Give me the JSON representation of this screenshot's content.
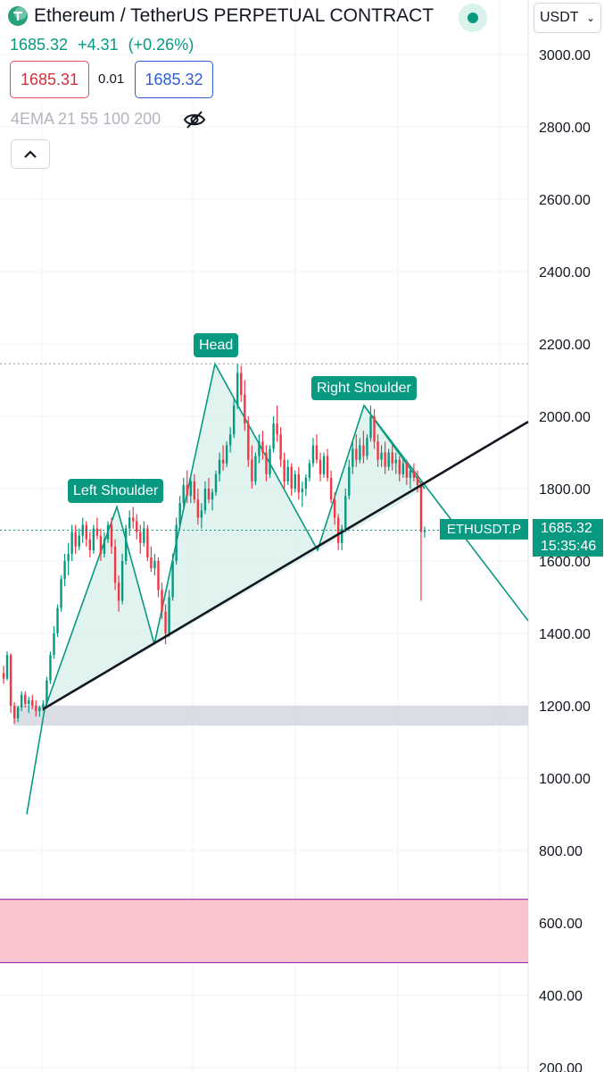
{
  "header": {
    "title": "Ethereum / TetherUS PERPETUAL CONTRACT",
    "currency": "USDT",
    "last_price": "1685.32",
    "change": "+4.31",
    "change_pct": "(+0.26%)"
  },
  "order": {
    "bid": "1685.31",
    "spread": "0.01",
    "ask": "1685.32"
  },
  "indicator": {
    "label": "4EMA 21 55 100 200"
  },
  "price_tag": {
    "symbol": "ETHUSDT.P",
    "price": "1685.32",
    "countdown": "15:35:46"
  },
  "annotations": {
    "left_shoulder": "Left Shoulder",
    "head": "Head",
    "right_shoulder": "Right Shoulder"
  },
  "colors": {
    "accent": "#089981",
    "bearish": "#f23645",
    "bid_border": "#e04d55",
    "ask_border": "#2f5fd0",
    "pattern_fill": "#d6efe8",
    "support_zone": "#d1d4dc",
    "demand_zone": "#f7c2c8",
    "demand_border": "#9c27b0"
  },
  "icons": [
    "tetherus-logo-icon",
    "live-status-icon",
    "chevron-down-icon",
    "hide-eye-icon",
    "chevron-up-icon"
  ],
  "chart_data": {
    "type": "candlestick",
    "symbol": "ETHUSDT.P",
    "y_axis": {
      "ticks": [
        "3000.00",
        "2800.00",
        "2600.00",
        "2400.00",
        "2200.00",
        "2000.00",
        "1800.00",
        "1600.00",
        "1400.00",
        "1200.00",
        "1000.00",
        "800.00",
        "600.00",
        "400.00",
        "200.00"
      ],
      "range": [
        200,
        3000
      ]
    },
    "last_price": 1685.32,
    "pattern": "head-and-shoulders",
    "pattern_points": [
      {
        "name": "start",
        "price": 1190
      },
      {
        "name": "left_shoulder",
        "price": 1750
      },
      {
        "name": "trough_1",
        "price": 1370
      },
      {
        "name": "head",
        "price": 2145
      },
      {
        "name": "trough_2",
        "price": 1630
      },
      {
        "name": "right_shoulder",
        "price": 2030
      },
      {
        "name": "neckline_break",
        "price": 1800
      }
    ],
    "neckline": {
      "from_price": 1190,
      "to_price": 1985
    },
    "head_level": 2145,
    "current_price_level": 1685.32,
    "support_zone": [
      1145,
      1200
    ],
    "demand_zone": [
      490,
      665
    ],
    "grid": true,
    "candles": [
      {
        "o": 1290,
        "h": 1310,
        "l": 1260,
        "c": 1275
      },
      {
        "o": 1275,
        "h": 1350,
        "l": 1270,
        "c": 1340
      },
      {
        "o": 1340,
        "h": 1345,
        "l": 1180,
        "c": 1200
      },
      {
        "o": 1200,
        "h": 1210,
        "l": 1150,
        "c": 1165
      },
      {
        "o": 1165,
        "h": 1200,
        "l": 1155,
        "c": 1195
      },
      {
        "o": 1195,
        "h": 1240,
        "l": 1185,
        "c": 1230
      },
      {
        "o": 1230,
        "h": 1240,
        "l": 1195,
        "c": 1205
      },
      {
        "o": 1205,
        "h": 1225,
        "l": 1180,
        "c": 1215
      },
      {
        "o": 1215,
        "h": 1230,
        "l": 1190,
        "c": 1200
      },
      {
        "o": 1200,
        "h": 1215,
        "l": 1170,
        "c": 1185
      },
      {
        "o": 1185,
        "h": 1200,
        "l": 1170,
        "c": 1195
      },
      {
        "o": 1195,
        "h": 1215,
        "l": 1185,
        "c": 1205
      },
      {
        "o": 1205,
        "h": 1280,
        "l": 1200,
        "c": 1270
      },
      {
        "o": 1270,
        "h": 1350,
        "l": 1260,
        "c": 1340
      },
      {
        "o": 1340,
        "h": 1420,
        "l": 1330,
        "c": 1400
      },
      {
        "o": 1400,
        "h": 1480,
        "l": 1390,
        "c": 1470
      },
      {
        "o": 1470,
        "h": 1560,
        "l": 1460,
        "c": 1550
      },
      {
        "o": 1550,
        "h": 1620,
        "l": 1530,
        "c": 1600
      },
      {
        "o": 1600,
        "h": 1650,
        "l": 1560,
        "c": 1620
      },
      {
        "o": 1620,
        "h": 1700,
        "l": 1600,
        "c": 1680
      },
      {
        "o": 1680,
        "h": 1700,
        "l": 1620,
        "c": 1640
      },
      {
        "o": 1640,
        "h": 1690,
        "l": 1630,
        "c": 1670
      },
      {
        "o": 1670,
        "h": 1720,
        "l": 1650,
        "c": 1700
      },
      {
        "o": 1700,
        "h": 1710,
        "l": 1640,
        "c": 1660
      },
      {
        "o": 1660,
        "h": 1680,
        "l": 1610,
        "c": 1630
      },
      {
        "o": 1630,
        "h": 1700,
        "l": 1620,
        "c": 1690
      },
      {
        "o": 1690,
        "h": 1720,
        "l": 1660,
        "c": 1670
      },
      {
        "o": 1670,
        "h": 1690,
        "l": 1600,
        "c": 1620
      },
      {
        "o": 1620,
        "h": 1680,
        "l": 1610,
        "c": 1660
      },
      {
        "o": 1660,
        "h": 1710,
        "l": 1650,
        "c": 1700
      },
      {
        "o": 1700,
        "h": 1720,
        "l": 1620,
        "c": 1640
      },
      {
        "o": 1640,
        "h": 1660,
        "l": 1520,
        "c": 1540
      },
      {
        "o": 1540,
        "h": 1560,
        "l": 1460,
        "c": 1490
      },
      {
        "o": 1490,
        "h": 1620,
        "l": 1480,
        "c": 1600
      },
      {
        "o": 1600,
        "h": 1700,
        "l": 1590,
        "c": 1690
      },
      {
        "o": 1690,
        "h": 1740,
        "l": 1670,
        "c": 1720
      },
      {
        "o": 1720,
        "h": 1750,
        "l": 1690,
        "c": 1710
      },
      {
        "o": 1710,
        "h": 1730,
        "l": 1660,
        "c": 1680
      },
      {
        "o": 1680,
        "h": 1700,
        "l": 1620,
        "c": 1650
      },
      {
        "o": 1650,
        "h": 1710,
        "l": 1640,
        "c": 1690
      },
      {
        "o": 1690,
        "h": 1700,
        "l": 1600,
        "c": 1610
      },
      {
        "o": 1610,
        "h": 1640,
        "l": 1570,
        "c": 1580
      },
      {
        "o": 1580,
        "h": 1620,
        "l": 1560,
        "c": 1600
      },
      {
        "o": 1600,
        "h": 1610,
        "l": 1500,
        "c": 1520
      },
      {
        "o": 1520,
        "h": 1540,
        "l": 1440,
        "c": 1460
      },
      {
        "o": 1460,
        "h": 1480,
        "l": 1370,
        "c": 1400
      },
      {
        "o": 1400,
        "h": 1520,
        "l": 1390,
        "c": 1500
      },
      {
        "o": 1500,
        "h": 1620,
        "l": 1490,
        "c": 1600
      },
      {
        "o": 1600,
        "h": 1720,
        "l": 1590,
        "c": 1700
      },
      {
        "o": 1700,
        "h": 1780,
        "l": 1690,
        "c": 1760
      },
      {
        "o": 1760,
        "h": 1830,
        "l": 1740,
        "c": 1810
      },
      {
        "o": 1810,
        "h": 1850,
        "l": 1760,
        "c": 1780
      },
      {
        "o": 1780,
        "h": 1830,
        "l": 1760,
        "c": 1820
      },
      {
        "o": 1820,
        "h": 1840,
        "l": 1760,
        "c": 1770
      },
      {
        "o": 1770,
        "h": 1800,
        "l": 1700,
        "c": 1720
      },
      {
        "o": 1720,
        "h": 1760,
        "l": 1690,
        "c": 1740
      },
      {
        "o": 1740,
        "h": 1820,
        "l": 1730,
        "c": 1800
      },
      {
        "o": 1800,
        "h": 1830,
        "l": 1760,
        "c": 1770
      },
      {
        "o": 1770,
        "h": 1800,
        "l": 1740,
        "c": 1790
      },
      {
        "o": 1790,
        "h": 1850,
        "l": 1780,
        "c": 1840
      },
      {
        "o": 1840,
        "h": 1900,
        "l": 1820,
        "c": 1880
      },
      {
        "o": 1880,
        "h": 1920,
        "l": 1850,
        "c": 1870
      },
      {
        "o": 1870,
        "h": 1930,
        "l": 1860,
        "c": 1920
      },
      {
        "o": 1920,
        "h": 1970,
        "l": 1900,
        "c": 1950
      },
      {
        "o": 1950,
        "h": 2050,
        "l": 1940,
        "c": 2030
      },
      {
        "o": 2030,
        "h": 2145,
        "l": 2020,
        "c": 2120
      },
      {
        "o": 2120,
        "h": 2140,
        "l": 2040,
        "c": 2060
      },
      {
        "o": 2060,
        "h": 2100,
        "l": 1960,
        "c": 1980
      },
      {
        "o": 1980,
        "h": 2000,
        "l": 1860,
        "c": 1880
      },
      {
        "o": 1880,
        "h": 1920,
        "l": 1800,
        "c": 1820
      },
      {
        "o": 1820,
        "h": 1900,
        "l": 1810,
        "c": 1890
      },
      {
        "o": 1890,
        "h": 1950,
        "l": 1870,
        "c": 1930
      },
      {
        "o": 1930,
        "h": 1960,
        "l": 1880,
        "c": 1900
      },
      {
        "o": 1900,
        "h": 1920,
        "l": 1820,
        "c": 1840
      },
      {
        "o": 1840,
        "h": 1920,
        "l": 1830,
        "c": 1910
      },
      {
        "o": 1910,
        "h": 2000,
        "l": 1900,
        "c": 1980
      },
      {
        "o": 1980,
        "h": 2030,
        "l": 1930,
        "c": 1950
      },
      {
        "o": 1950,
        "h": 1970,
        "l": 1860,
        "c": 1880
      },
      {
        "o": 1880,
        "h": 1900,
        "l": 1800,
        "c": 1820
      },
      {
        "o": 1820,
        "h": 1880,
        "l": 1810,
        "c": 1860
      },
      {
        "o": 1860,
        "h": 1870,
        "l": 1780,
        "c": 1800
      },
      {
        "o": 1800,
        "h": 1850,
        "l": 1790,
        "c": 1840
      },
      {
        "o": 1840,
        "h": 1860,
        "l": 1770,
        "c": 1790
      },
      {
        "o": 1790,
        "h": 1820,
        "l": 1750,
        "c": 1800
      },
      {
        "o": 1800,
        "h": 1840,
        "l": 1780,
        "c": 1830
      },
      {
        "o": 1830,
        "h": 1880,
        "l": 1820,
        "c": 1870
      },
      {
        "o": 1870,
        "h": 1940,
        "l": 1860,
        "c": 1920
      },
      {
        "o": 1920,
        "h": 1950,
        "l": 1870,
        "c": 1880
      },
      {
        "o": 1880,
        "h": 1900,
        "l": 1820,
        "c": 1840
      },
      {
        "o": 1840,
        "h": 1900,
        "l": 1830,
        "c": 1890
      },
      {
        "o": 1890,
        "h": 1910,
        "l": 1820,
        "c": 1830
      },
      {
        "o": 1830,
        "h": 1850,
        "l": 1760,
        "c": 1770
      },
      {
        "o": 1770,
        "h": 1790,
        "l": 1700,
        "c": 1720
      },
      {
        "o": 1720,
        "h": 1730,
        "l": 1630,
        "c": 1650
      },
      {
        "o": 1650,
        "h": 1700,
        "l": 1630,
        "c": 1690
      },
      {
        "o": 1690,
        "h": 1800,
        "l": 1680,
        "c": 1780
      },
      {
        "o": 1780,
        "h": 1880,
        "l": 1770,
        "c": 1860
      },
      {
        "o": 1860,
        "h": 1930,
        "l": 1840,
        "c": 1910
      },
      {
        "o": 1910,
        "h": 1950,
        "l": 1860,
        "c": 1880
      },
      {
        "o": 1880,
        "h": 1940,
        "l": 1870,
        "c": 1920
      },
      {
        "o": 1920,
        "h": 1960,
        "l": 1870,
        "c": 1890
      },
      {
        "o": 1890,
        "h": 1950,
        "l": 1880,
        "c": 1940
      },
      {
        "o": 1940,
        "h": 2030,
        "l": 1930,
        "c": 2000
      },
      {
        "o": 2000,
        "h": 2020,
        "l": 1910,
        "c": 1930
      },
      {
        "o": 1930,
        "h": 1950,
        "l": 1860,
        "c": 1880
      },
      {
        "o": 1880,
        "h": 1920,
        "l": 1860,
        "c": 1900
      },
      {
        "o": 1900,
        "h": 1930,
        "l": 1840,
        "c": 1860
      },
      {
        "o": 1860,
        "h": 1910,
        "l": 1850,
        "c": 1900
      },
      {
        "o": 1900,
        "h": 1920,
        "l": 1850,
        "c": 1870
      },
      {
        "o": 1870,
        "h": 1900,
        "l": 1840,
        "c": 1880
      },
      {
        "o": 1880,
        "h": 1890,
        "l": 1820,
        "c": 1840
      },
      {
        "o": 1840,
        "h": 1880,
        "l": 1830,
        "c": 1870
      },
      {
        "o": 1870,
        "h": 1880,
        "l": 1810,
        "c": 1830
      },
      {
        "o": 1830,
        "h": 1860,
        "l": 1800,
        "c": 1850
      },
      {
        "o": 1850,
        "h": 1870,
        "l": 1820,
        "c": 1830
      },
      {
        "o": 1830,
        "h": 1850,
        "l": 1790,
        "c": 1810
      },
      {
        "o": 1810,
        "h": 1820,
        "l": 1490,
        "c": 1680
      },
      {
        "o": 1680,
        "h": 1695,
        "l": 1665,
        "c": 1685
      }
    ]
  }
}
